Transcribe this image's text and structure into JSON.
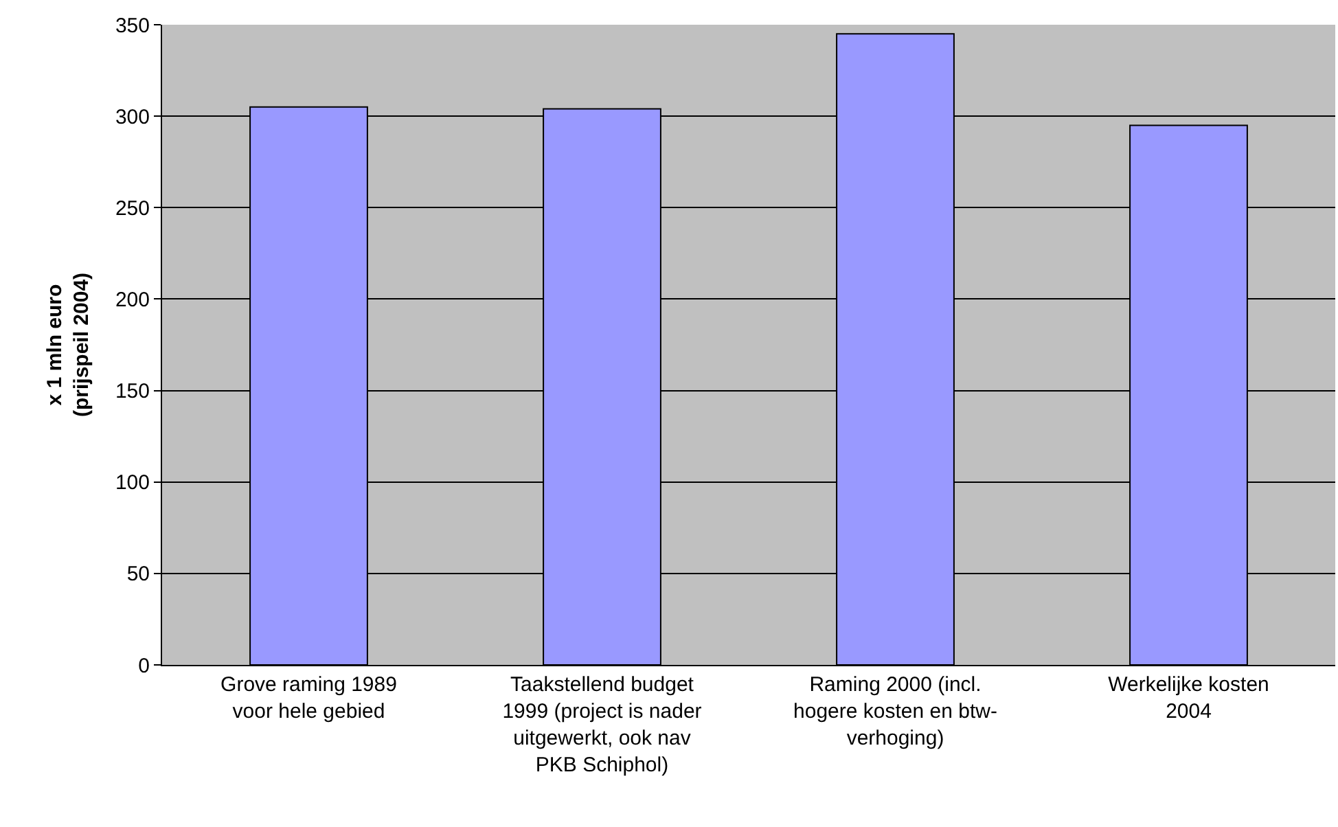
{
  "chart_data": {
    "type": "bar",
    "ylabel": "x 1 mln euro\n(prijspeil 2004)",
    "categories": [
      "Grove raming 1989\nvoor hele gebied",
      "Taakstellend budget\n1999 (project is nader\nuitgewerkt, ook nav\nPKB Schiphol)",
      "Raming 2000 (incl.\nhogere kosten en btw-\nverhoging)",
      "Werkelijke kosten\n2004"
    ],
    "values": [
      305,
      304,
      345,
      295
    ],
    "color": "#9999ff",
    "ylim": [
      0,
      350
    ],
    "yticks": [
      0,
      50,
      100,
      150,
      200,
      250,
      300,
      350
    ],
    "grid": "y"
  }
}
